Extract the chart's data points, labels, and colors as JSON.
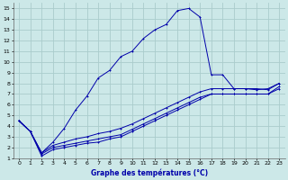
{
  "title": "Graphe des températures (°C)",
  "background_color": "#cce8e8",
  "grid_color": "#aacccc",
  "line_color": "#0000aa",
  "xlim": [
    -0.5,
    23.5
  ],
  "ylim": [
    1,
    15.5
  ],
  "xticks": [
    0,
    1,
    2,
    3,
    4,
    5,
    6,
    7,
    8,
    9,
    10,
    11,
    12,
    13,
    14,
    15,
    16,
    17,
    18,
    19,
    20,
    21,
    22,
    23
  ],
  "yticks": [
    1,
    2,
    3,
    4,
    5,
    6,
    7,
    8,
    9,
    10,
    11,
    12,
    13,
    14,
    15
  ],
  "line1_x": [
    0,
    1,
    2,
    3,
    4,
    5,
    6,
    7,
    8,
    9,
    10,
    11,
    12,
    13,
    14,
    15,
    16,
    17,
    18,
    19,
    20,
    21,
    22,
    23
  ],
  "line1_y": [
    4.5,
    3.5,
    1.5,
    2.5,
    3.8,
    5.5,
    6.8,
    8.5,
    9.2,
    10.5,
    11.0,
    12.2,
    13.0,
    13.5,
    14.8,
    15.0,
    14.2,
    8.8,
    8.8,
    7.5,
    7.5,
    7.4,
    7.5,
    8.0
  ],
  "line2_x": [
    0,
    1,
    2,
    3,
    4,
    5,
    6,
    7,
    8,
    9,
    10,
    11,
    12,
    13,
    14,
    15,
    16,
    17,
    18,
    19,
    20,
    21,
    22,
    23
  ],
  "line2_y": [
    4.5,
    3.5,
    1.5,
    2.2,
    2.5,
    2.8,
    3.0,
    3.3,
    3.5,
    3.8,
    4.2,
    4.7,
    5.2,
    5.7,
    6.2,
    6.7,
    7.2,
    7.5,
    7.5,
    7.5,
    7.5,
    7.5,
    7.4,
    8.0
  ],
  "line3_x": [
    0,
    1,
    2,
    3,
    4,
    5,
    6,
    7,
    8,
    9,
    10,
    11,
    12,
    13,
    14,
    15,
    16,
    17,
    18,
    19,
    20,
    21,
    22,
    23
  ],
  "line3_y": [
    4.5,
    3.5,
    1.2,
    1.8,
    2.0,
    2.2,
    2.4,
    2.5,
    2.8,
    3.0,
    3.5,
    4.0,
    4.5,
    5.0,
    5.5,
    6.0,
    6.5,
    7.0,
    7.0,
    7.0,
    7.0,
    7.0,
    7.0,
    7.5
  ],
  "line4_x": [
    0,
    1,
    2,
    3,
    4,
    5,
    6,
    7,
    8,
    9,
    10,
    11,
    12,
    13,
    14,
    15,
    16,
    17,
    18,
    19,
    20,
    21,
    22,
    23
  ],
  "line4_y": [
    4.5,
    3.5,
    1.4,
    2.0,
    2.2,
    2.4,
    2.6,
    2.8,
    3.0,
    3.2,
    3.7,
    4.2,
    4.7,
    5.2,
    5.7,
    6.2,
    6.7,
    7.0,
    7.0,
    7.0,
    7.0,
    7.0,
    7.0,
    7.7
  ]
}
